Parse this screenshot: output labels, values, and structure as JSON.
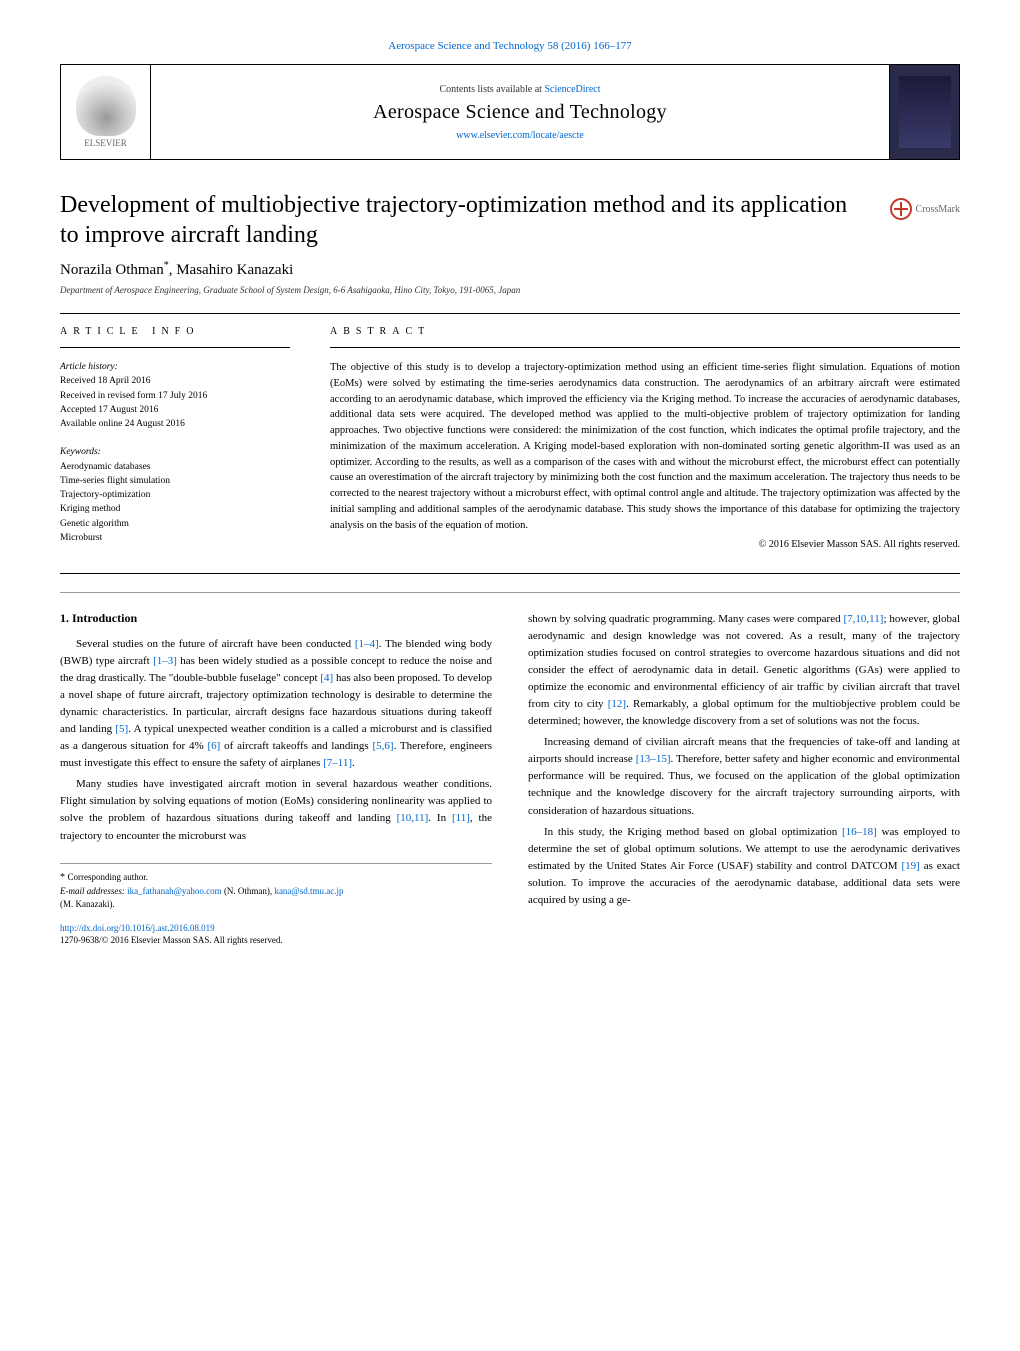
{
  "journal_ref": "Aerospace Science and Technology 58 (2016) 166–177",
  "header": {
    "publisher_name": "ELSEVIER",
    "contents_prefix": "Contents lists available at ",
    "contents_link": "ScienceDirect",
    "journal_title": "Aerospace Science and Technology",
    "journal_url": "www.elsevier.com/locate/aescte"
  },
  "crossmark_label": "CrossMark",
  "title": "Development of multiobjective trajectory-optimization method and its application to improve aircraft landing",
  "authors_html": "Norazila Othman",
  "author2": "Masahiro Kanazaki",
  "affiliation": "Department of Aerospace Engineering, Graduate School of System Design, 6-6 Asahigaoka, Hino City, Tokyo, 191-0065, Japan",
  "article_info_header": "article info",
  "abstract_header": "abstract",
  "history": {
    "label": "Article history:",
    "received": "Received 18 April 2016",
    "revised": "Received in revised form 17 July 2016",
    "accepted": "Accepted 17 August 2016",
    "online": "Available online 24 August 2016"
  },
  "keywords": {
    "label": "Keywords:",
    "k1": "Aerodynamic databases",
    "k2": "Time-series flight simulation",
    "k3": "Trajectory-optimization",
    "k4": "Kriging method",
    "k5": "Genetic algorithm",
    "k6": "Microburst"
  },
  "abstract": "The objective of this study is to develop a trajectory-optimization method using an efficient time-series flight simulation. Equations of motion (EoMs) were solved by estimating the time-series aerodynamics data construction. The aerodynamics of an arbitrary aircraft were estimated according to an aerodynamic database, which improved the efficiency via the Kriging method. To increase the accuracies of aerodynamic databases, additional data sets were acquired. The developed method was applied to the multi-objective problem of trajectory optimization for landing approaches. Two objective functions were considered: the minimization of the cost function, which indicates the optimal profile trajectory, and the minimization of the maximum acceleration. A Kriging model-based exploration with non-dominated sorting genetic algorithm-II was used as an optimizer. According to the results, as well as a comparison of the cases with and without the microburst effect, the microburst effect can potentially cause an overestimation of the aircraft trajectory by minimizing both the cost function and the maximum acceleration. The trajectory thus needs to be corrected to the nearest trajectory without a microburst effect, with optimal control angle and altitude. The trajectory optimization was affected by the initial sampling and additional samples of the aerodynamic database. This study shows the importance of this database for optimizing the trajectory analysis on the basis of the equation of motion.",
  "abstract_copyright": "© 2016 Elsevier Masson SAS. All rights reserved.",
  "intro": {
    "heading": "1. Introduction",
    "p1a": "Several studies on the future of aircraft have been conducted ",
    "r1": "[1–4]",
    "p1b": ". The blended wing body (BWB) type aircraft ",
    "r2": "[1–3]",
    "p1c": " has been widely studied as a possible concept to reduce the noise and the drag drastically. The \"double-bubble fuselage\" concept ",
    "r3": "[4]",
    "p1d": " has also been proposed. To develop a novel shape of future aircraft, trajectory optimization technology is desirable to determine the dynamic characteristics. In particular, aircraft designs face hazardous situations during takeoff and landing ",
    "r4": "[5]",
    "p1e": ". A typical unexpected weather condition is a called a microburst and is classified as a dangerous situation for 4% ",
    "r5": "[6]",
    "p1f": " of aircraft takeoffs and landings ",
    "r6": "[5,6]",
    "p1g": ". Therefore, engineers must investigate this effect to ensure the safety of airplanes ",
    "r7": "[7–11]",
    "p1h": ".",
    "p2a": "Many studies have investigated aircraft motion in several hazardous weather conditions. Flight simulation by solving equations of motion (EoMs) considering nonlinearity was applied to solve the problem of hazardous situations during takeoff and landing ",
    "r8": "[10,11]",
    "p2b": ". In ",
    "r9": "[11]",
    "p2c": ", the trajectory to encounter the microburst was ",
    "p3a": "shown by solving quadratic programming. Many cases were compared ",
    "r10": "[7,10,11]",
    "p3b": "; however, global aerodynamic and design knowledge was not covered. As a result, many of the trajectory optimization studies focused on control strategies to overcome hazardous situations and did not consider the effect of aerodynamic data in detail. Genetic algorithms (GAs) were applied to optimize the economic and environmental efficiency of air traffic by civilian aircraft that travel from city to city ",
    "r11": "[12]",
    "p3c": ". Remarkably, a global optimum for the multiobjective problem could be determined; however, the knowledge discovery from a set of solutions was not the focus.",
    "p4a": "Increasing demand of civilian aircraft means that the frequencies of take-off and landing at airports should increase ",
    "r12": "[13–15]",
    "p4b": ". Therefore, better safety and higher economic and environmental performance will be required. Thus, we focused on the application of the global optimization technique and the knowledge discovery for the aircraft trajectory surrounding airports, with consideration of hazardous situations.",
    "p5a": "In this study, the Kriging method based on global optimization ",
    "r13": "[16–18]",
    "p5b": " was employed to determine the set of global optimum solutions. We attempt to use the aerodynamic derivatives estimated by the United States Air Force (USAF) stability and control DATCOM ",
    "r14": "[19]",
    "p5c": " as exact solution. To improve the accuracies of the aerodynamic database, additional data sets were acquired by using a ge-"
  },
  "footnotes": {
    "corr_label": "Corresponding author.",
    "email_label": "E-mail addresses:",
    "email1": "ika_fathanah@yahoo.com",
    "email1_name": " (N. Othman), ",
    "email2": "kana@sd.tmu.ac.jp",
    "email2_name": "(M. Kanazaki)."
  },
  "doi": {
    "url": "http://dx.doi.org/10.1016/j.ast.2016.08.019",
    "issn_line": "1270-9638/© 2016 Elsevier Masson SAS. All rights reserved."
  }
}
